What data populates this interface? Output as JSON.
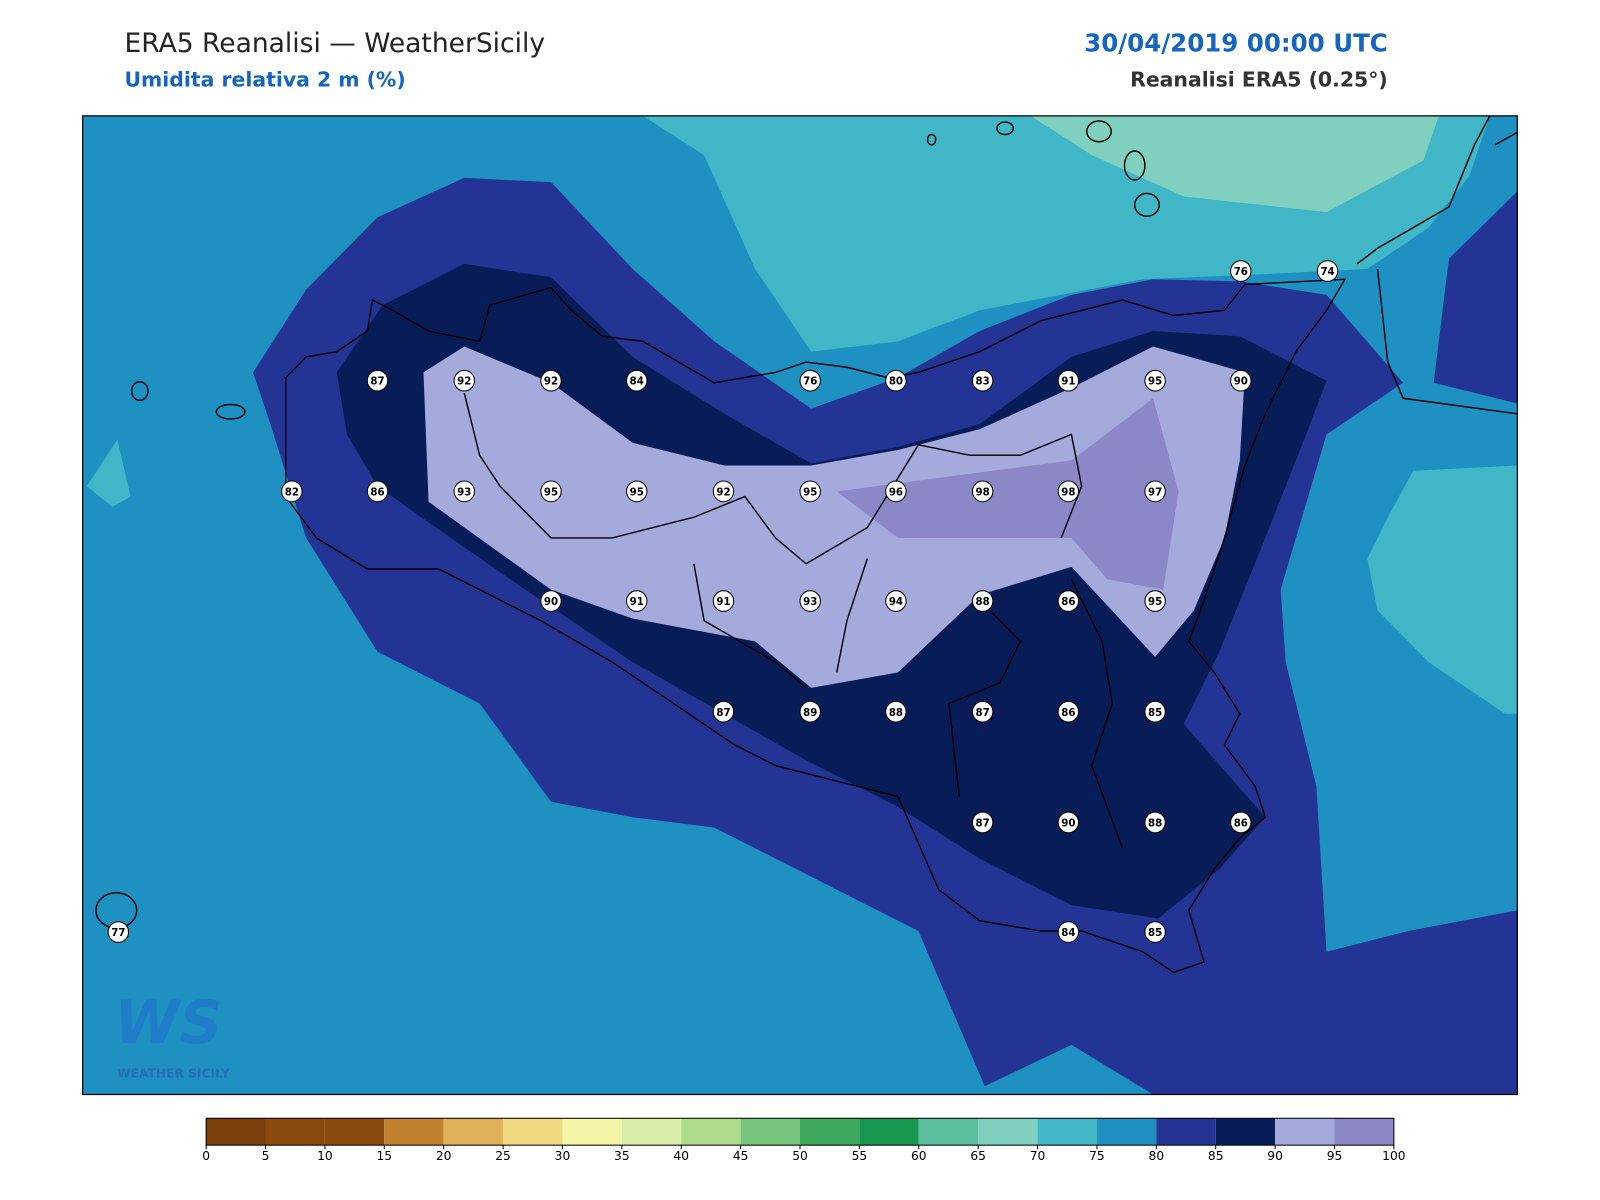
{
  "header": {
    "title": "ERA5 Reanalisi — WeatherSicily",
    "subtitle": "Umidita relativa 2 m (%)",
    "date": "30/04/2019 00:00 UTC",
    "source": "Reanalisi ERA5 (0.25°)"
  },
  "stations": [
    76,
    74,
    87,
    92,
    92,
    84,
    76,
    80,
    83,
    91,
    95,
    90,
    82,
    86,
    93,
    95,
    95,
    92,
    95,
    96,
    98,
    98,
    97,
    90,
    91,
    91,
    93,
    94,
    88,
    86,
    95,
    87,
    89,
    88,
    87,
    86,
    85,
    87,
    90,
    88,
    86,
    77,
    84,
    85
  ],
  "colorbar": {
    "ticks": [
      0,
      5,
      10,
      15,
      20,
      25,
      30,
      35,
      40,
      45,
      50,
      55,
      60,
      65,
      70,
      75,
      80,
      85,
      90,
      95,
      100
    ],
    "colors": [
      "#7a3f0a",
      "#8c4a0c",
      "#8c4a0c",
      "#c0802e",
      "#e0b05a",
      "#f0d880",
      "#f5f5a8",
      "#d8eda8",
      "#acdc8c",
      "#78c47a",
      "#3ea85c",
      "#189850",
      "#5cc0a0",
      "#80d0c0",
      "#40b6c6",
      "#1e90c2",
      "#243494",
      "#081d58",
      "#a4aadc",
      "#8c88c8"
    ]
  },
  "logo": {
    "mark": "WS",
    "caption": "WEATHER SICILY"
  }
}
